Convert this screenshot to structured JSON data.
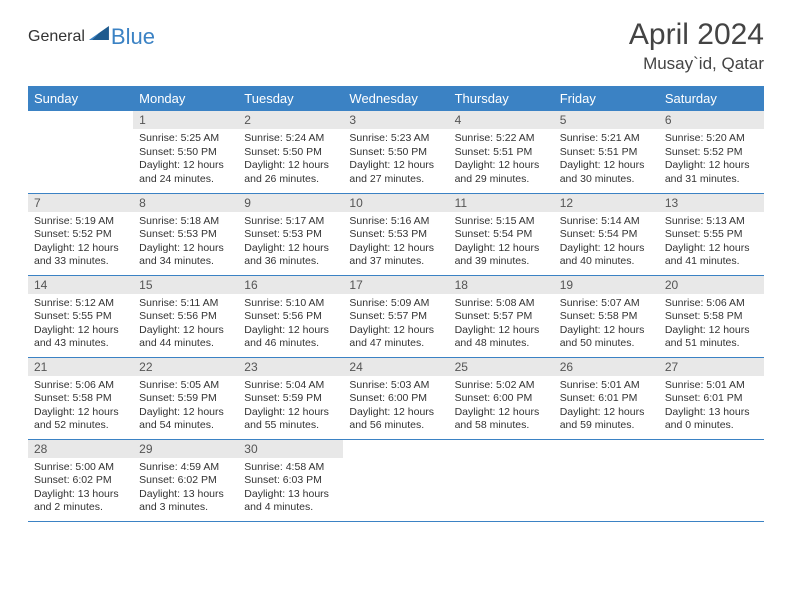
{
  "logo": {
    "text1": "General",
    "text2": "Blue"
  },
  "title": "April 2024",
  "location": "Musay`id, Qatar",
  "colors": {
    "header_bg": "#3b82c4",
    "header_fg": "#ffffff",
    "daynum_bg": "#e8e8e8",
    "border": "#3b82c4",
    "text": "#333333"
  },
  "weekdays": [
    "Sunday",
    "Monday",
    "Tuesday",
    "Wednesday",
    "Thursday",
    "Friday",
    "Saturday"
  ],
  "weeks": [
    [
      null,
      {
        "n": "1",
        "sr": "5:25 AM",
        "ss": "5:50 PM",
        "dl": "12 hours and 24 minutes."
      },
      {
        "n": "2",
        "sr": "5:24 AM",
        "ss": "5:50 PM",
        "dl": "12 hours and 26 minutes."
      },
      {
        "n": "3",
        "sr": "5:23 AM",
        "ss": "5:50 PM",
        "dl": "12 hours and 27 minutes."
      },
      {
        "n": "4",
        "sr": "5:22 AM",
        "ss": "5:51 PM",
        "dl": "12 hours and 29 minutes."
      },
      {
        "n": "5",
        "sr": "5:21 AM",
        "ss": "5:51 PM",
        "dl": "12 hours and 30 minutes."
      },
      {
        "n": "6",
        "sr": "5:20 AM",
        "ss": "5:52 PM",
        "dl": "12 hours and 31 minutes."
      }
    ],
    [
      {
        "n": "7",
        "sr": "5:19 AM",
        "ss": "5:52 PM",
        "dl": "12 hours and 33 minutes."
      },
      {
        "n": "8",
        "sr": "5:18 AM",
        "ss": "5:53 PM",
        "dl": "12 hours and 34 minutes."
      },
      {
        "n": "9",
        "sr": "5:17 AM",
        "ss": "5:53 PM",
        "dl": "12 hours and 36 minutes."
      },
      {
        "n": "10",
        "sr": "5:16 AM",
        "ss": "5:53 PM",
        "dl": "12 hours and 37 minutes."
      },
      {
        "n": "11",
        "sr": "5:15 AM",
        "ss": "5:54 PM",
        "dl": "12 hours and 39 minutes."
      },
      {
        "n": "12",
        "sr": "5:14 AM",
        "ss": "5:54 PM",
        "dl": "12 hours and 40 minutes."
      },
      {
        "n": "13",
        "sr": "5:13 AM",
        "ss": "5:55 PM",
        "dl": "12 hours and 41 minutes."
      }
    ],
    [
      {
        "n": "14",
        "sr": "5:12 AM",
        "ss": "5:55 PM",
        "dl": "12 hours and 43 minutes."
      },
      {
        "n": "15",
        "sr": "5:11 AM",
        "ss": "5:56 PM",
        "dl": "12 hours and 44 minutes."
      },
      {
        "n": "16",
        "sr": "5:10 AM",
        "ss": "5:56 PM",
        "dl": "12 hours and 46 minutes."
      },
      {
        "n": "17",
        "sr": "5:09 AM",
        "ss": "5:57 PM",
        "dl": "12 hours and 47 minutes."
      },
      {
        "n": "18",
        "sr": "5:08 AM",
        "ss": "5:57 PM",
        "dl": "12 hours and 48 minutes."
      },
      {
        "n": "19",
        "sr": "5:07 AM",
        "ss": "5:58 PM",
        "dl": "12 hours and 50 minutes."
      },
      {
        "n": "20",
        "sr": "5:06 AM",
        "ss": "5:58 PM",
        "dl": "12 hours and 51 minutes."
      }
    ],
    [
      {
        "n": "21",
        "sr": "5:06 AM",
        "ss": "5:58 PM",
        "dl": "12 hours and 52 minutes."
      },
      {
        "n": "22",
        "sr": "5:05 AM",
        "ss": "5:59 PM",
        "dl": "12 hours and 54 minutes."
      },
      {
        "n": "23",
        "sr": "5:04 AM",
        "ss": "5:59 PM",
        "dl": "12 hours and 55 minutes."
      },
      {
        "n": "24",
        "sr": "5:03 AM",
        "ss": "6:00 PM",
        "dl": "12 hours and 56 minutes."
      },
      {
        "n": "25",
        "sr": "5:02 AM",
        "ss": "6:00 PM",
        "dl": "12 hours and 58 minutes."
      },
      {
        "n": "26",
        "sr": "5:01 AM",
        "ss": "6:01 PM",
        "dl": "12 hours and 59 minutes."
      },
      {
        "n": "27",
        "sr": "5:01 AM",
        "ss": "6:01 PM",
        "dl": "13 hours and 0 minutes."
      }
    ],
    [
      {
        "n": "28",
        "sr": "5:00 AM",
        "ss": "6:02 PM",
        "dl": "13 hours and 2 minutes."
      },
      {
        "n": "29",
        "sr": "4:59 AM",
        "ss": "6:02 PM",
        "dl": "13 hours and 3 minutes."
      },
      {
        "n": "30",
        "sr": "4:58 AM",
        "ss": "6:03 PM",
        "dl": "13 hours and 4 minutes."
      },
      null,
      null,
      null,
      null
    ]
  ],
  "labels": {
    "sunrise": "Sunrise:",
    "sunset": "Sunset:",
    "daylight": "Daylight:"
  }
}
